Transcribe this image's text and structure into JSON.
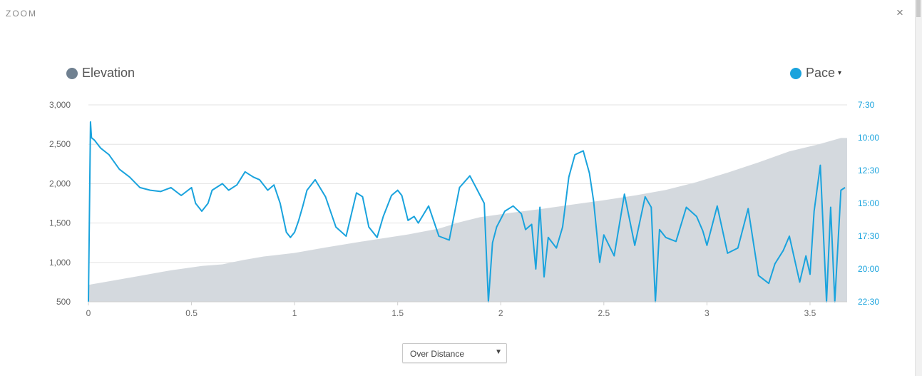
{
  "modal": {
    "title": "ZOOM",
    "close_icon": "close-icon",
    "close_glyph": "×"
  },
  "legend": {
    "elevation": {
      "label": "Elevation",
      "color": "#6f8090"
    },
    "pace": {
      "label": "Pace",
      "color": "#1aa3dd",
      "caret": "▾"
    }
  },
  "colors": {
    "elevation_fill": "#d4d9de",
    "pace_line": "#1aa3dd",
    "grid": "#e3e3e3",
    "right_axis_text": "#1aa3dd"
  },
  "x_axis_select": {
    "value": "Over Distance",
    "caret": "▼"
  },
  "chart_data": {
    "type": "line",
    "x_unit_ticks": [
      "0",
      "0.5",
      "1",
      "1.5",
      "2",
      "2.5",
      "3",
      "3.5"
    ],
    "left_axis": {
      "ticks": [
        "500",
        "1,000",
        "1,500",
        "2,000",
        "2,500",
        "3,000"
      ],
      "ylim": [
        500,
        3000
      ]
    },
    "right_axis": {
      "ticks": [
        "7:30",
        "10:00",
        "12:30",
        "15:00",
        "17:30",
        "20:00",
        "22:30"
      ],
      "ylim_minutes_per_unit": [
        22.5,
        7.5
      ]
    },
    "xlim": [
      0,
      3.68
    ],
    "grid": true,
    "legend_placement": "top",
    "series": [
      {
        "name": "Elevation",
        "type": "area",
        "x": [
          0,
          0.1,
          0.25,
          0.4,
          0.55,
          0.65,
          0.75,
          0.85,
          1.0,
          1.15,
          1.35,
          1.55,
          1.7,
          1.8,
          1.9,
          2.05,
          2.2,
          2.35,
          2.5,
          2.65,
          2.8,
          2.95,
          3.1,
          3.25,
          3.4,
          3.55,
          3.65,
          3.68
        ],
        "y": [
          715,
          760,
          830,
          900,
          955,
          975,
          1030,
          1075,
          1120,
          1190,
          1275,
          1355,
          1430,
          1510,
          1575,
          1630,
          1680,
          1735,
          1790,
          1850,
          1920,
          2020,
          2140,
          2270,
          2410,
          2505,
          2580,
          2580
        ]
      },
      {
        "name": "Pace",
        "type": "line",
        "axis": "right",
        "x": [
          0,
          0.01,
          0.015,
          0.03,
          0.06,
          0.1,
          0.15,
          0.2,
          0.25,
          0.3,
          0.35,
          0.4,
          0.45,
          0.5,
          0.52,
          0.55,
          0.58,
          0.6,
          0.65,
          0.68,
          0.72,
          0.76,
          0.8,
          0.83,
          0.87,
          0.9,
          0.93,
          0.96,
          0.98,
          1.0,
          1.02,
          1.04,
          1.06,
          1.1,
          1.15,
          1.2,
          1.25,
          1.3,
          1.33,
          1.36,
          1.4,
          1.43,
          1.47,
          1.5,
          1.52,
          1.55,
          1.58,
          1.6,
          1.65,
          1.7,
          1.75,
          1.8,
          1.85,
          1.88,
          1.92,
          1.94,
          1.96,
          1.98,
          2.02,
          2.06,
          2.1,
          2.12,
          2.15,
          2.17,
          2.19,
          2.21,
          2.23,
          2.27,
          2.3,
          2.33,
          2.36,
          2.4,
          2.43,
          2.45,
          2.48,
          2.5,
          2.55,
          2.6,
          2.65,
          2.7,
          2.73,
          2.75,
          2.77,
          2.8,
          2.85,
          2.9,
          2.95,
          2.98,
          3.0,
          3.05,
          3.1,
          3.15,
          3.2,
          3.25,
          3.3,
          3.33,
          3.37,
          3.4,
          3.45,
          3.48,
          3.5,
          3.52,
          3.55,
          3.58,
          3.6,
          3.62,
          3.65,
          3.67
        ],
        "y": [
          22.5,
          8.8,
          10.0,
          10.2,
          10.8,
          11.3,
          12.4,
          13.0,
          13.8,
          14.0,
          14.1,
          13.8,
          14.4,
          13.8,
          15.0,
          15.6,
          15.0,
          14.0,
          13.5,
          14.0,
          13.6,
          12.6,
          13.0,
          13.2,
          14.0,
          13.6,
          15.0,
          17.2,
          17.6,
          17.2,
          16.3,
          15.2,
          14.0,
          13.2,
          14.5,
          16.8,
          17.5,
          14.2,
          14.5,
          16.8,
          17.6,
          16.0,
          14.4,
          14.0,
          14.4,
          16.3,
          16.0,
          16.5,
          15.2,
          17.5,
          17.8,
          13.8,
          12.9,
          13.8,
          15.0,
          22.5,
          18.0,
          16.8,
          15.6,
          15.2,
          15.8,
          17.0,
          16.6,
          20.0,
          15.3,
          20.6,
          17.6,
          18.4,
          16.8,
          13.0,
          11.3,
          11.0,
          12.7,
          14.8,
          19.5,
          17.4,
          19.0,
          14.3,
          18.2,
          14.5,
          15.3,
          22.5,
          17.0,
          17.6,
          17.9,
          15.3,
          16.0,
          17.1,
          18.2,
          15.2,
          18.8,
          18.4,
          15.4,
          20.5,
          21.1,
          19.6,
          18.6,
          17.5,
          21.0,
          19.0,
          20.4,
          15.6,
          12.1,
          22.5,
          15.3,
          22.5,
          14.0,
          13.8
        ]
      }
    ]
  }
}
